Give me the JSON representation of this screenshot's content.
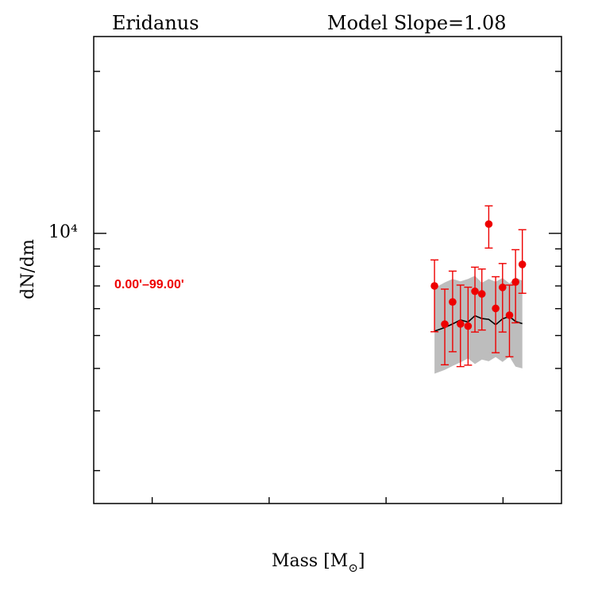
{
  "chart_data": {
    "type": "scatter",
    "title_left": "Eridanus",
    "title_right": "Model  Slope=1.08",
    "xlabel": "Mass [M",
    "xlabel_suffix": "]",
    "ylabel": "dN/dm",
    "y_scale": "log",
    "ytick_label": "10⁴",
    "ytick_value": 10000,
    "ylim": [
      1600,
      38000
    ],
    "annotation": "0.00'–99.00'",
    "grid": false,
    "colors": {
      "points": "#ee0000",
      "model_line": "#000000",
      "model_band": "#bdbdbd",
      "annotation": "#ee0000",
      "axes": "#000000"
    },
    "points": [
      {
        "x": 0.8414,
        "y": 7000,
        "ylo": 5130,
        "yhi": 8350
      },
      {
        "x": 0.8502,
        "y": 5400,
        "ylo": 4100,
        "yhi": 6850
      },
      {
        "x": 0.8569,
        "y": 6280,
        "ylo": 4480,
        "yhi": 7740
      },
      {
        "x": 0.8636,
        "y": 5410,
        "ylo": 4050,
        "yhi": 7040
      },
      {
        "x": 0.8701,
        "y": 5330,
        "ylo": 4090,
        "yhi": 6940
      },
      {
        "x": 0.876,
        "y": 6750,
        "ylo": 5120,
        "yhi": 7950
      },
      {
        "x": 0.8819,
        "y": 6630,
        "ylo": 5190,
        "yhi": 7850
      },
      {
        "x": 0.8878,
        "y": 10650,
        "ylo": 9050,
        "yhi": 12050
      },
      {
        "x": 0.8937,
        "y": 6010,
        "ylo": 4450,
        "yhi": 7450
      },
      {
        "x": 0.8996,
        "y": 6930,
        "ylo": 5120,
        "yhi": 8150
      },
      {
        "x": 0.9055,
        "y": 5740,
        "ylo": 4330,
        "yhi": 7040
      },
      {
        "x": 0.9107,
        "y": 7190,
        "ylo": 5450,
        "yhi": 8950
      },
      {
        "x": 0.9165,
        "y": 8100,
        "ylo": 6660,
        "yhi": 10250
      }
    ],
    "model_line": [
      {
        "x": 0.8414,
        "y": 5150
      },
      {
        "x": 0.8502,
        "y": 5280
      },
      {
        "x": 0.8569,
        "y": 5410
      },
      {
        "x": 0.8636,
        "y": 5560
      },
      {
        "x": 0.8701,
        "y": 5480
      },
      {
        "x": 0.876,
        "y": 5720
      },
      {
        "x": 0.8819,
        "y": 5610
      },
      {
        "x": 0.8878,
        "y": 5580
      },
      {
        "x": 0.8937,
        "y": 5380
      },
      {
        "x": 0.8996,
        "y": 5600
      },
      {
        "x": 0.9055,
        "y": 5690
      },
      {
        "x": 0.9107,
        "y": 5500
      },
      {
        "x": 0.9165,
        "y": 5420
      }
    ],
    "model_band": [
      {
        "x": 0.8414,
        "lo": 3860,
        "hi": 6900
      },
      {
        "x": 0.8502,
        "lo": 3960,
        "hi": 7170
      },
      {
        "x": 0.8569,
        "lo": 4070,
        "hi": 7340
      },
      {
        "x": 0.8636,
        "lo": 4170,
        "hi": 7220
      },
      {
        "x": 0.8701,
        "lo": 4280,
        "hi": 7340
      },
      {
        "x": 0.876,
        "lo": 4120,
        "hi": 7500
      },
      {
        "x": 0.8819,
        "lo": 4250,
        "hi": 7150
      },
      {
        "x": 0.8878,
        "lo": 4200,
        "hi": 7340
      },
      {
        "x": 0.8937,
        "lo": 4320,
        "hi": 7200
      },
      {
        "x": 0.8996,
        "lo": 4180,
        "hi": 7390
      },
      {
        "x": 0.9055,
        "lo": 4330,
        "hi": 7120
      },
      {
        "x": 0.9107,
        "lo": 4050,
        "hi": 7420
      },
      {
        "x": 0.9165,
        "lo": 4000,
        "hi": 7250
      }
    ]
  }
}
